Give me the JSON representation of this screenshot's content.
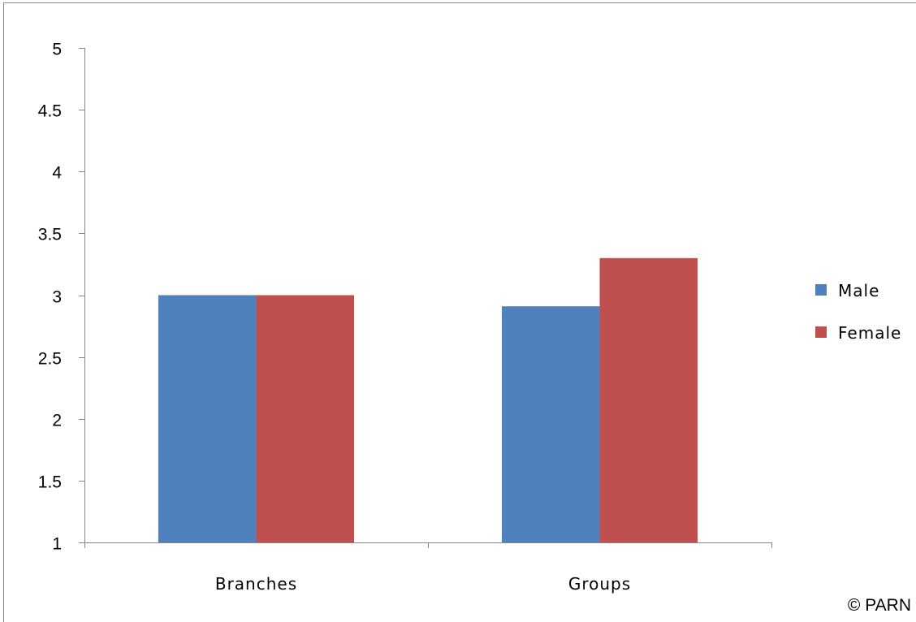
{
  "chart_data": {
    "type": "bar",
    "categories": [
      "Branches",
      "Groups"
    ],
    "series": [
      {
        "name": "Male",
        "color": "#4F81BD",
        "values": [
          3.0,
          2.91
        ]
      },
      {
        "name": "Female",
        "color": "#C0504D",
        "values": [
          3.0,
          3.3
        ]
      }
    ],
    "ylim": [
      1,
      5
    ],
    "yticks": [
      "1",
      "1.5",
      "2",
      "2.5",
      "3",
      "3.5",
      "4",
      "4.5",
      "5"
    ],
    "grid": false,
    "legend_position": "right",
    "title": "",
    "xlabel": "",
    "ylabel": ""
  },
  "copyright": "© PARN"
}
